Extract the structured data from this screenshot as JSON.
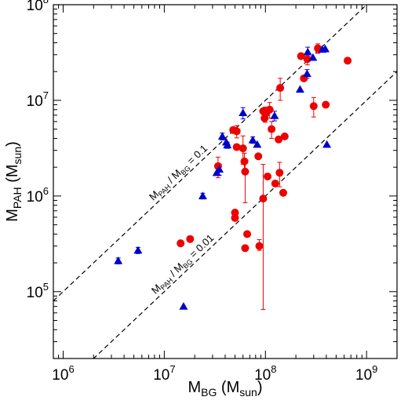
{
  "chart_data": {
    "type": "scatter",
    "xscale": "log",
    "yscale": "log",
    "xlim": [
      800000,
      2000000000
    ],
    "ylim": [
      20000,
      100000000
    ],
    "xlabel": {
      "main": "M",
      "sub": "BG",
      "rest": " (M",
      "sub2": "sun",
      "end": ")"
    },
    "ylabel": {
      "main": "M",
      "sub": "PAH",
      "rest": " (M",
      "sub2": "sun",
      "end": ")"
    },
    "x_ticks": [
      {
        "value": 1000000,
        "base": "10",
        "exp": "6"
      },
      {
        "value": 10000000,
        "base": "10",
        "exp": "7"
      },
      {
        "value": 100000000,
        "base": "10",
        "exp": "8"
      },
      {
        "value": 1000000000,
        "base": "10",
        "exp": "9"
      }
    ],
    "y_ticks": [
      {
        "value": 100000,
        "base": "10",
        "exp": "5"
      },
      {
        "value": 1000000,
        "base": "10",
        "exp": "6"
      },
      {
        "value": 10000000,
        "base": "10",
        "exp": "7"
      },
      {
        "value": 100000000,
        "base": "10",
        "exp": "8"
      }
    ],
    "reference_lines": [
      {
        "ratio": 0.1,
        "label": {
          "a": "M",
          "a_sub": "PAH",
          "mid": " / M",
          "b_sub": "BG",
          "end": " = 0.1"
        }
      },
      {
        "ratio": 0.01,
        "label": {
          "a": "M",
          "a_sub": "PAH",
          "mid": " / M",
          "b_sub": "BG",
          "end": " = 0.01"
        }
      }
    ],
    "colors": {
      "circle_series": "#ee0000",
      "triangle_series": "#0000cc",
      "axis": "#000000",
      "reference_line": "#000000"
    },
    "series": [
      {
        "marker": "circle",
        "color": "#ee0000",
        "points": [
          {
            "x": 14500000,
            "y": 320000
          },
          {
            "x": 18000000,
            "y": 355000
          },
          {
            "x": 34000000,
            "y": 2050000,
            "err_plus": 500000,
            "err_minus": 500000
          },
          {
            "x": 48000000,
            "y": 4900000
          },
          {
            "x": 50000000,
            "y": 670000
          },
          {
            "x": 50000000,
            "y": 590000
          },
          {
            "x": 52000000,
            "y": 4750000,
            "err_plus": 700000,
            "err_minus": 700000
          },
          {
            "x": 52000000,
            "y": 3250000
          },
          {
            "x": 60000000,
            "y": 3150000,
            "err_plus": 1100000,
            "err_minus": 1000000
          },
          {
            "x": 62000000,
            "y": 2300000,
            "err_plus": 500000,
            "err_minus": 500000
          },
          {
            "x": 63000000,
            "y": 1800000,
            "err_plus": 500000,
            "err_minus": 950000
          },
          {
            "x": 63000000,
            "y": 285000
          },
          {
            "x": 66000000,
            "y": 400000
          },
          {
            "x": 85000000,
            "y": 2600000
          },
          {
            "x": 87000000,
            "y": 300000,
            "err_plus": 50000,
            "err_minus": 30000
          },
          {
            "x": 95000000,
            "y": 7700000
          },
          {
            "x": 98000000,
            "y": 6500000
          },
          {
            "x": 100000000,
            "y": 7200000,
            "err_plus": 1300000,
            "err_minus": 1300000
          },
          {
            "x": 95000000,
            "y": 940000,
            "err_plus": 1200000,
            "err_minus": 875000
          },
          {
            "x": 105000000,
            "y": 1600000
          },
          {
            "x": 110000000,
            "y": 8000000,
            "err_plus": 1500000,
            "err_minus": 1500000
          },
          {
            "x": 115000000,
            "y": 5000000,
            "err_plus": 1000000,
            "err_minus": 1000000
          },
          {
            "x": 125000000,
            "y": 1350000
          },
          {
            "x": 135000000,
            "y": 3900000
          },
          {
            "x": 138000000,
            "y": 1750000,
            "err_plus": 500000,
            "err_minus": 500000
          },
          {
            "x": 140000000,
            "y": 13500000,
            "err_plus": 3500000,
            "err_minus": 3500000
          },
          {
            "x": 150000000,
            "y": 1080000
          },
          {
            "x": 155000000,
            "y": 4200000
          },
          {
            "x": 225000000,
            "y": 29000000
          },
          {
            "x": 240000000,
            "y": 17000000
          },
          {
            "x": 260000000,
            "y": 27000000,
            "err_plus": 3500000,
            "err_minus": 3500000
          },
          {
            "x": 300000000,
            "y": 8700000,
            "err_plus": 2000000,
            "err_minus": 2000000
          },
          {
            "x": 330000000,
            "y": 35000000,
            "err_plus": 4000000,
            "err_minus": 4000000
          },
          {
            "x": 395000000,
            "y": 9000000
          },
          {
            "x": 650000000,
            "y": 26000000
          }
        ]
      },
      {
        "marker": "triangle",
        "color": "#0000cc",
        "points": [
          {
            "x": 3500000,
            "y": 210000,
            "err_plus": 15000,
            "err_minus": 15000
          },
          {
            "x": 5500000,
            "y": 270000,
            "err_plus": 20000,
            "err_minus": 20000
          },
          {
            "x": 15500000,
            "y": 70000
          },
          {
            "x": 24000000,
            "y": 1000000,
            "err_plus": 70000,
            "err_minus": 70000
          },
          {
            "x": 33000000,
            "y": 1750000
          },
          {
            "x": 35000000,
            "y": 1900000,
            "err_plus": 250000,
            "err_minus": 250000
          },
          {
            "x": 37500000,
            "y": 4200000,
            "err_plus": 350000,
            "err_minus": 350000
          },
          {
            "x": 41000000,
            "y": 3650000
          },
          {
            "x": 42000000,
            "y": 3400000,
            "err_plus": 250000,
            "err_minus": 250000
          },
          {
            "x": 60000000,
            "y": 7400000,
            "err_plus": 1000000,
            "err_minus": 1000000
          },
          {
            "x": 75000000,
            "y": 3850000,
            "err_plus": 300000,
            "err_minus": 300000
          },
          {
            "x": 83000000,
            "y": 3450000
          },
          {
            "x": 123000000,
            "y": 6900000,
            "err_plus": 800000,
            "err_minus": 800000
          },
          {
            "x": 220000000,
            "y": 13000000
          },
          {
            "x": 258000000,
            "y": 19000000,
            "err_plus": 2000000,
            "err_minus": 2000000
          },
          {
            "x": 262000000,
            "y": 32000000,
            "err_plus": 4000000,
            "err_minus": 4000000
          },
          {
            "x": 295000000,
            "y": 28000000
          },
          {
            "x": 365000000,
            "y": 34000000
          },
          {
            "x": 390000000,
            "y": 34500000
          },
          {
            "x": 405000000,
            "y": 3450000
          }
        ]
      }
    ]
  }
}
